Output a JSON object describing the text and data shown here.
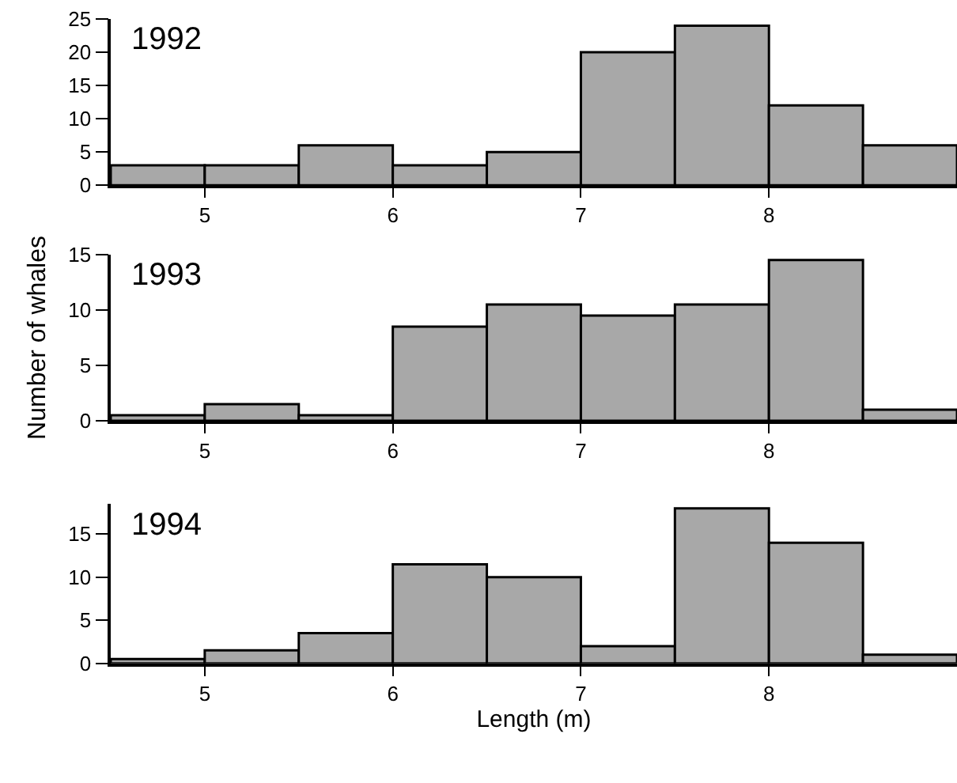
{
  "chart_data": [
    {
      "type": "histogram",
      "title": "1992",
      "bins": [
        4.5,
        5.0,
        5.5,
        6.0,
        6.5,
        7.0,
        7.5,
        8.0,
        8.5,
        9.0
      ],
      "values": [
        3,
        3,
        6,
        3,
        5,
        20,
        24,
        12,
        6
      ],
      "color": "#a8a8a8",
      "xlim": [
        4.5,
        9.0
      ],
      "xticks": [
        5,
        6,
        7,
        8
      ],
      "ylim": [
        0,
        25
      ],
      "yticks": [
        0,
        5,
        10,
        15,
        20,
        25
      ],
      "grid": false
    },
    {
      "type": "histogram",
      "title": "1993",
      "ylabel": "Number of whales",
      "bins": [
        4.5,
        5.0,
        5.5,
        6.0,
        6.5,
        7.0,
        7.5,
        8.0,
        8.5,
        9.0
      ],
      "values": [
        0.5,
        1.5,
        0.5,
        8.5,
        10.5,
        9.5,
        10.5,
        14.5,
        1
      ],
      "color": "#a8a8a8",
      "xlim": [
        4.5,
        9.0
      ],
      "xticks": [
        5,
        6,
        7,
        8
      ],
      "ylim": [
        0,
        15
      ],
      "yticks": [
        0,
        5,
        10,
        15
      ],
      "grid": false
    },
    {
      "type": "histogram",
      "title": "1994",
      "xlabel": "Length (m)",
      "bins": [
        4.5,
        5.0,
        5.5,
        6.0,
        6.5,
        7.0,
        7.5,
        8.0,
        8.5,
        9.0
      ],
      "values": [
        0.5,
        1.5,
        3.5,
        11.5,
        10,
        2,
        18,
        14,
        1
      ],
      "color": "#a8a8a8",
      "xlim": [
        4.5,
        9.0
      ],
      "xticks": [
        5,
        6,
        7,
        8
      ],
      "ylim": [
        0,
        18.5
      ],
      "yticks": [
        0,
        5,
        10,
        15
      ],
      "grid": false
    }
  ]
}
